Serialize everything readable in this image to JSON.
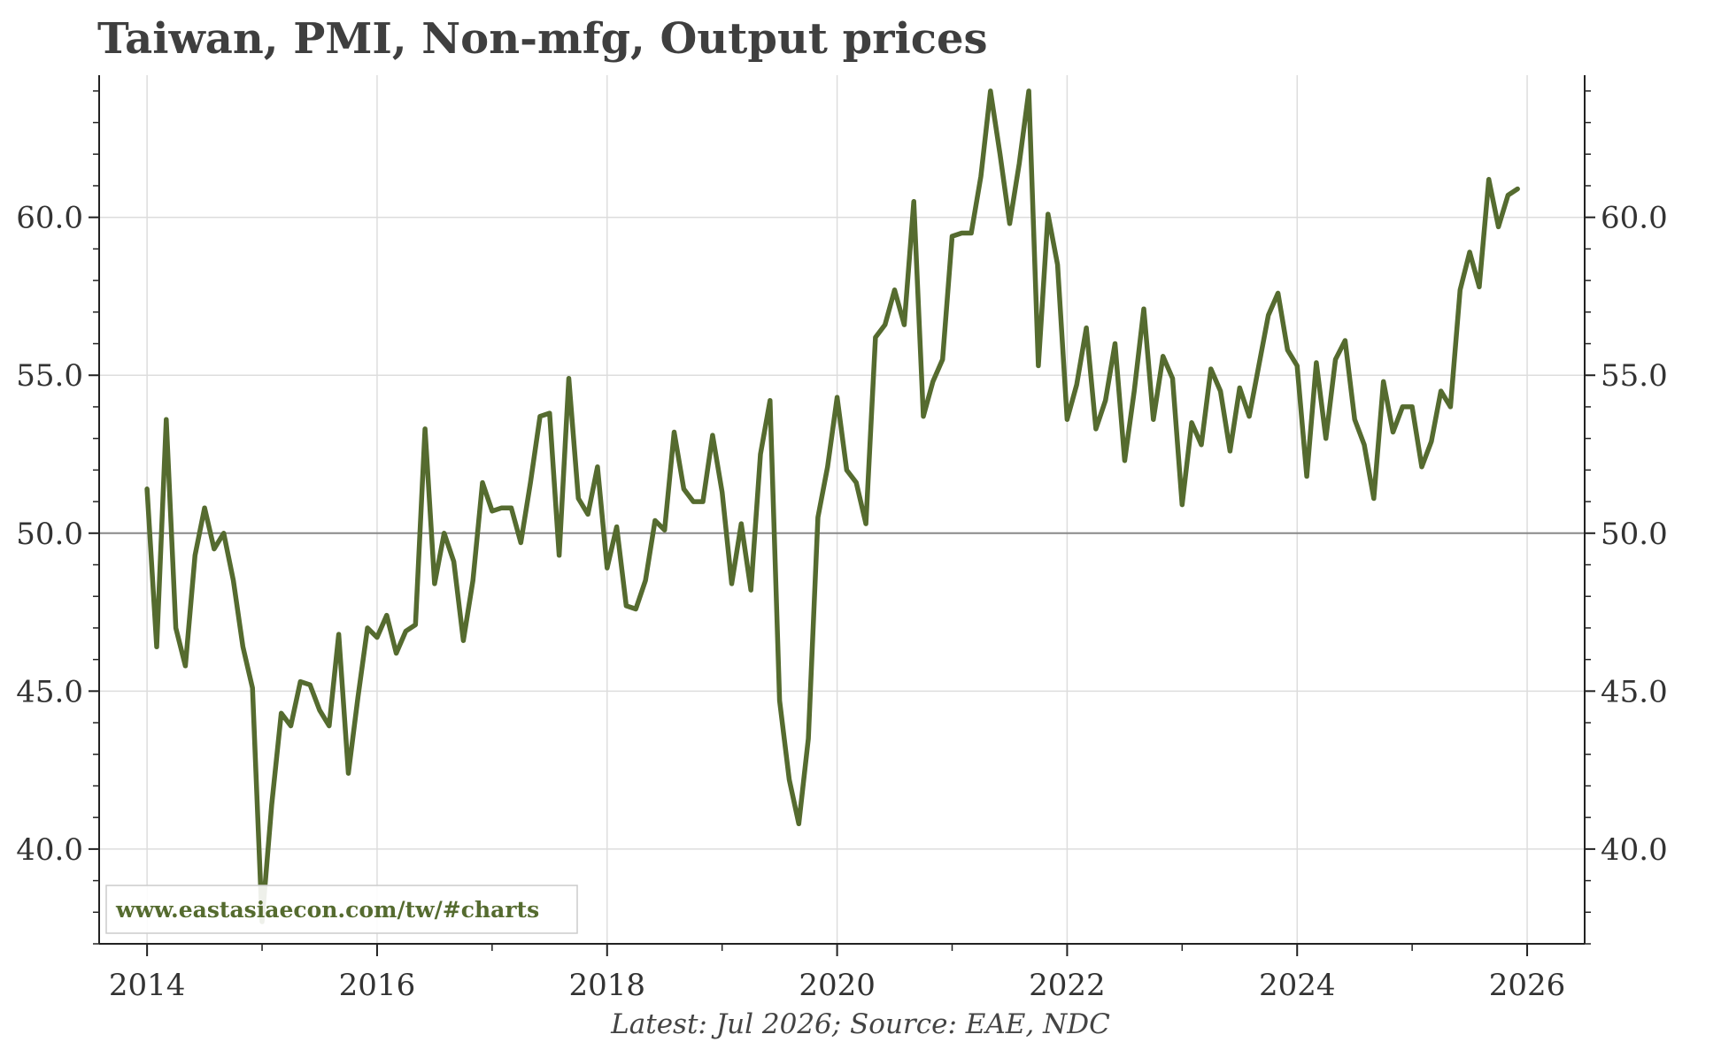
{
  "colors": {
    "line": "#556b2f",
    "grid": "#dddddd",
    "axis": "#222222",
    "reference": "#888888",
    "title": "#3f3f3f"
  },
  "chart_data": {
    "type": "line",
    "title": "Taiwan, PMI, Non-mfg, Output prices",
    "source_note": "Latest: Jul 2026; Source: EAE, NDC",
    "watermark": "www.eastasiaecon.com/tw/#charts",
    "xlabel": "",
    "ylabel": "",
    "x_ticks": [
      "2014",
      "2016",
      "2018",
      "2020",
      "2022",
      "2024",
      "2026"
    ],
    "y_ticks": [
      "40.0",
      "45.0",
      "50.0",
      "55.0",
      "60.0"
    ],
    "ylim": [
      37.0,
      64.5
    ],
    "xlim": [
      "2013-08",
      "2026-07"
    ],
    "reference_line": 50.0,
    "grid": true,
    "legend": "none",
    "series": [
      {
        "start": "2014-01",
        "frequency": "monthly",
        "values": [
          51.4,
          46.4,
          53.6,
          47.0,
          45.8,
          49.3,
          50.8,
          49.5,
          50.0,
          48.5,
          46.4,
          45.1,
          37.7,
          41.4,
          44.3,
          43.9,
          45.3,
          45.2,
          44.4,
          43.9,
          46.8,
          42.4,
          44.8,
          47.0,
          46.7,
          47.4,
          46.2,
          46.9,
          47.1,
          53.3,
          48.4,
          50.0,
          49.1,
          46.6,
          48.5,
          51.6,
          50.7,
          50.8,
          50.8,
          49.7,
          51.6,
          53.7,
          53.8,
          49.3,
          54.9,
          51.1,
          50.6,
          52.1,
          48.9,
          50.2,
          47.7,
          47.6,
          48.5,
          50.4,
          50.1,
          53.2,
          51.4,
          51.0,
          51.0,
          53.1,
          51.3,
          48.4,
          50.3,
          48.2,
          52.5,
          54.2,
          44.7,
          42.2,
          40.8,
          43.5,
          50.5,
          52.1,
          54.3,
          52.0,
          51.6,
          50.3,
          56.2,
          56.6,
          57.7,
          56.6,
          60.5,
          53.7,
          54.8,
          55.5,
          59.4,
          59.5,
          59.5,
          61.3,
          64.0,
          62.0,
          59.8,
          61.7,
          64.0,
          55.3,
          60.1,
          58.5,
          53.6,
          54.7,
          56.5,
          53.3,
          54.2,
          56.0,
          52.3,
          54.5,
          57.1,
          53.6,
          55.6,
          54.9,
          50.9,
          53.5,
          52.8,
          55.2,
          54.5,
          52.6,
          54.6,
          53.7,
          55.3,
          56.9,
          57.6,
          55.8,
          55.3,
          51.8,
          55.4,
          53.0,
          55.5,
          56.1,
          53.6,
          52.8,
          51.1,
          54.8,
          53.2,
          54.0,
          54.0,
          52.1,
          52.9,
          54.5,
          54.0,
          57.7,
          58.9,
          57.8,
          61.2,
          59.7,
          60.7,
          60.9
        ]
      }
    ]
  }
}
